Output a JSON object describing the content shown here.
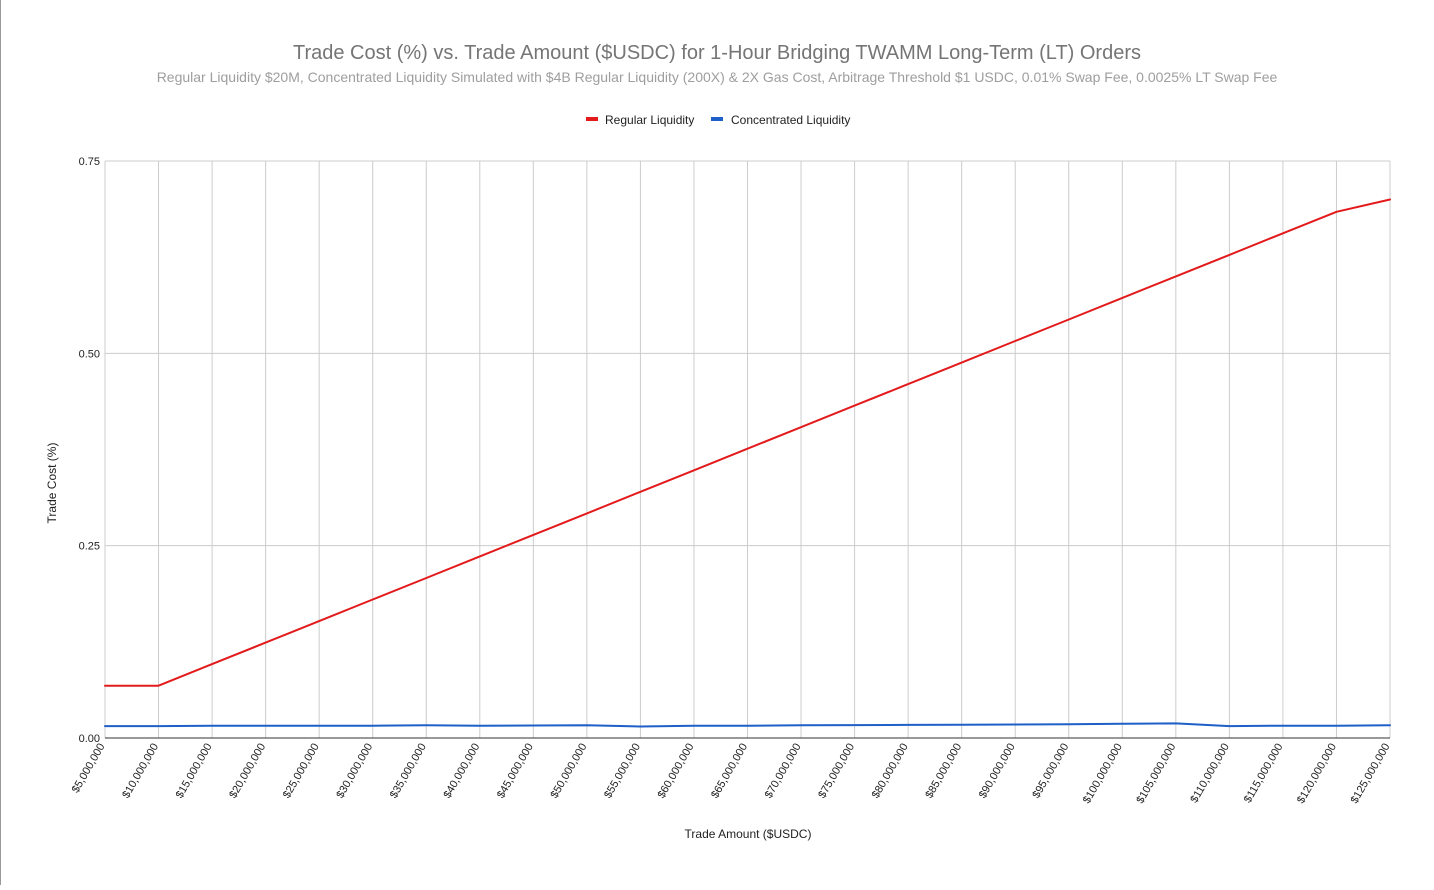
{
  "chart_data": {
    "type": "line",
    "title": "Trade Cost (%) vs. Trade Amount ($USDC) for 1-Hour Bridging TWAMM Long-Term (LT) Orders",
    "subtitle": "Regular Liquidity $20M, Concentrated Liquidity Simulated with $4B Regular Liquidity (200X) & 2X Gas Cost, Arbitrage Threshold $1 USDC, 0.01% Swap Fee, 0.0025% LT Swap Fee",
    "xlabel": "Trade Amount ($USDC)",
    "ylabel": "Trade Cost (%)",
    "categories": [
      "$5,000,000",
      "$10,000,000",
      "$15,000,000",
      "$20,000,000",
      "$25,000,000",
      "$30,000,000",
      "$35,000,000",
      "$40,000,000",
      "$45,000,000",
      "$50,000,000",
      "$55,000,000",
      "$60,000,000",
      "$65,000,000",
      "$70,000,000",
      "$75,000,000",
      "$80,000,000",
      "$85,000,000",
      "$90,000,000",
      "$95,000,000",
      "$100,000,000",
      "$105,000,000",
      "$110,000,000",
      "$115,000,000",
      "$120,000,000",
      "$125,000,000"
    ],
    "ylim": [
      0,
      0.75
    ],
    "yticks": [
      "0.00",
      "0.25",
      "0.50",
      "0.75"
    ],
    "ytick_values": [
      0,
      0.25,
      0.5,
      0.75
    ],
    "grid": true,
    "legend_position": "top-center",
    "series": [
      {
        "name": "Regular Liquidity",
        "color": "#e31a1c",
        "values": [
          0.068,
          0.068,
          0.096,
          0.124,
          0.152,
          0.18,
          0.208,
          0.236,
          0.264,
          0.292,
          0.32,
          0.348,
          0.376,
          0.404,
          0.432,
          0.46,
          0.488,
          0.516,
          0.544,
          0.572,
          0.6,
          0.628,
          0.656,
          0.684,
          0.7
        ]
      },
      {
        "name": "Concentrated Liquidity",
        "color": "#1f5fc8",
        "values": [
          0.0155,
          0.0155,
          0.016,
          0.016,
          0.016,
          0.016,
          0.0165,
          0.016,
          0.0163,
          0.0165,
          0.015,
          0.016,
          0.016,
          0.0165,
          0.0168,
          0.017,
          0.0172,
          0.0175,
          0.0178,
          0.0185,
          0.019,
          0.0155,
          0.016,
          0.016,
          0.0165
        ]
      }
    ]
  }
}
